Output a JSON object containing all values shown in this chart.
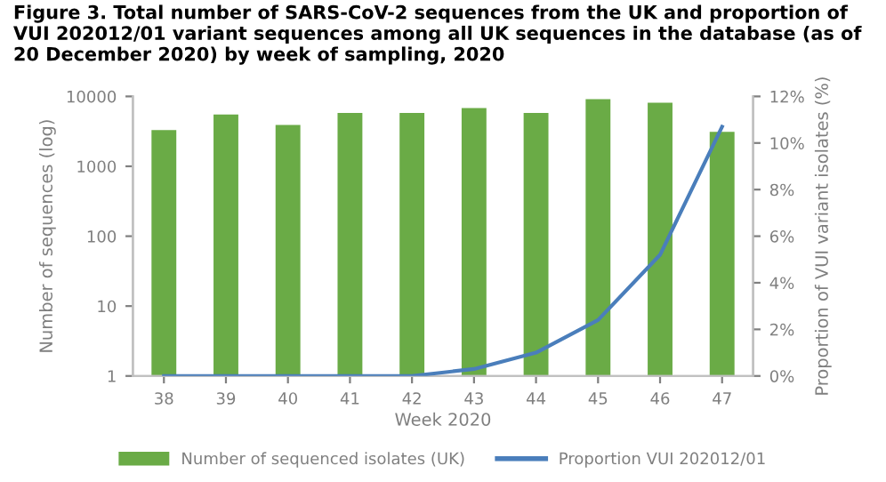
{
  "chart_data": {
    "type": "bar",
    "title": "Figure 3. Total number of SARS-CoV-2 sequences from the UK and proportion of VUI 202012/01 variant sequences among all UK sequences in the database (as of 20 December 2020) by week of sampling, 2020",
    "xlabel": "Week 2020",
    "ylabel": "Number of sequences (log)",
    "y2label": "Proportion of VUI variant isolates (%)",
    "categories": [
      "38",
      "39",
      "40",
      "41",
      "42",
      "43",
      "44",
      "45",
      "46",
      "47"
    ],
    "log": "y",
    "ylim": [
      1,
      10000
    ],
    "yticks": [
      1,
      10,
      100,
      1000,
      10000
    ],
    "y2lim": [
      0,
      12
    ],
    "y2ticks": [
      {
        "value": 0,
        "label": "0%"
      },
      {
        "value": 2,
        "label": "2%"
      },
      {
        "value": 4,
        "label": "4%"
      },
      {
        "value": 6,
        "label": "6%"
      },
      {
        "value": 8,
        "label": "8%"
      },
      {
        "value": 10,
        "label": "10%"
      },
      {
        "value": 12,
        "label": "12%"
      }
    ],
    "grid": false,
    "legend": "bottom",
    "series": [
      {
        "name": "Number of sequenced isolates (UK)",
        "color": "#6aab46",
        "values": [
          3300,
          5500,
          3900,
          5800,
          5800,
          6800,
          5800,
          9100,
          8100,
          3100
        ]
      },
      {
        "name": "Proportion VUI 202012/01",
        "type": "line",
        "axis": "y2",
        "color": "#4a7ebb",
        "marker": "none",
        "values": [
          0,
          0,
          0,
          0,
          0,
          0.3,
          1.0,
          2.4,
          5.2,
          10.7
        ]
      }
    ]
  }
}
